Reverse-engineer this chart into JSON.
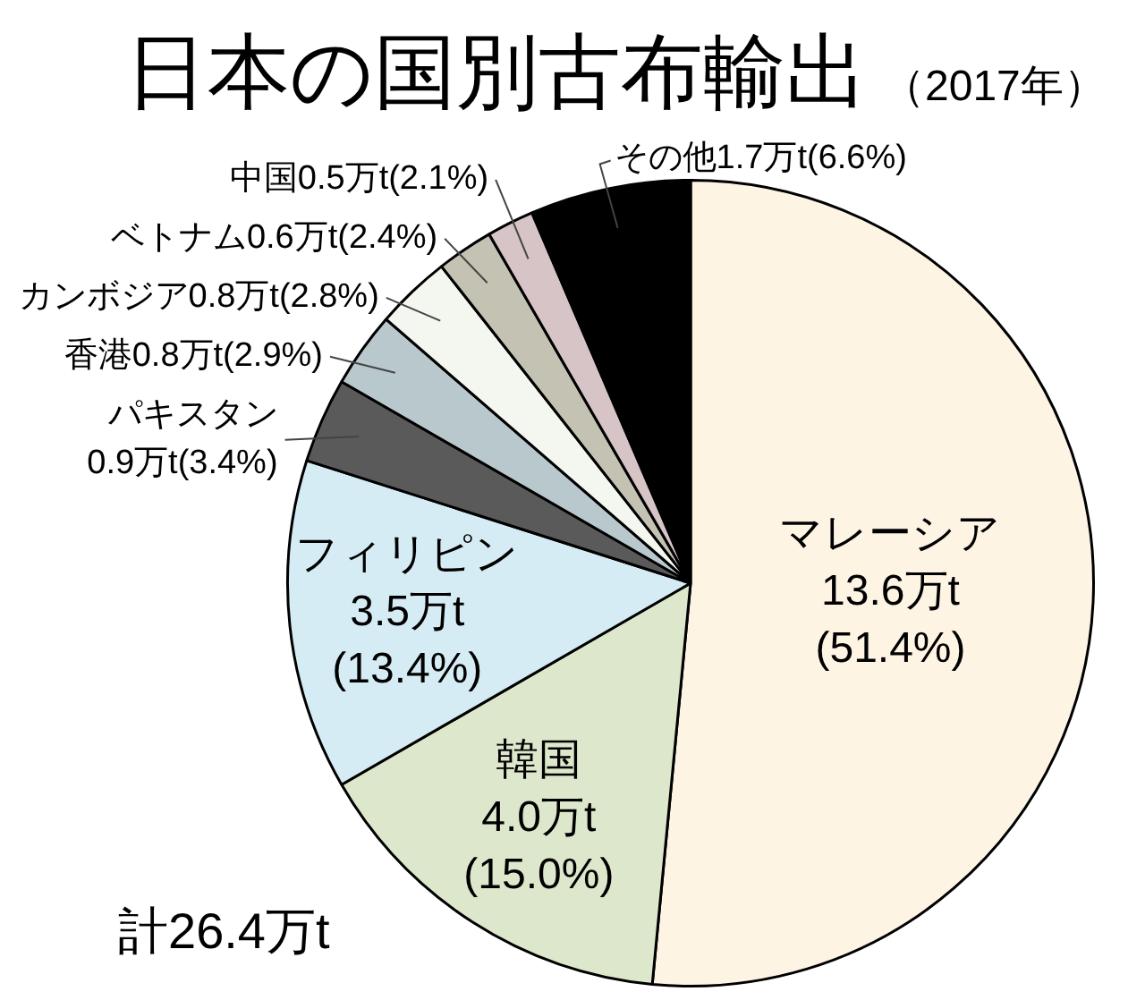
{
  "chart_data": {
    "type": "pie",
    "title": "日本の国別古布輸出",
    "subtitle": "（2017年）",
    "categories": [
      "マレーシア",
      "韓国",
      "フィリピン",
      "パキスタン",
      "香港",
      "カンボジア",
      "ベトナム",
      "中国",
      "その他"
    ],
    "values": [
      13.6,
      4.0,
      3.5,
      0.9,
      0.8,
      0.8,
      0.6,
      0.5,
      1.7
    ],
    "colors": [
      "#fdf4e4",
      "#dde7cb",
      "#d6ecf4",
      "#5a5a5a",
      "#b9c8cd",
      "#f4f7f0",
      "#c4c3b3",
      "#d6c4c7",
      "#000000"
    ],
    "value_labels": [
      "13.6万t(51.4%)",
      "4.0万t(15.0%)",
      "3.5万t(13.4%)",
      "0.9万t(3.4%)",
      "0.8万t(2.9%)",
      "0.8万t(2.8%)",
      "0.6万t(2.4%)",
      "0.5万t(2.1%)",
      "1.7万t(6.6%)"
    ],
    "annotations": [
      "計26.4万t"
    ]
  }
}
